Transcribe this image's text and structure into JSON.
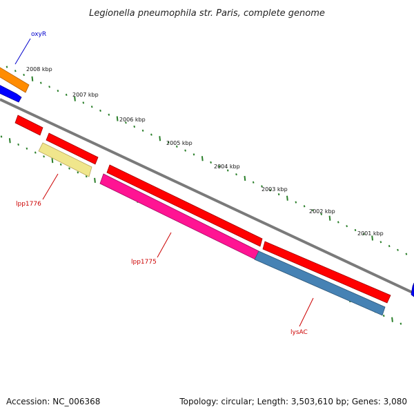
{
  "title": "Legionella pneumophila str. Paris, complete genome",
  "footer": {
    "accession": "Accession: NC_006368",
    "summary": "Topology: circular; Length: 3,503,610 bp; Genes: 3,080"
  },
  "scale_labels": [
    "2008 kbp",
    "2007 kbp",
    "2006 kbp",
    "2005 kbp",
    "2004 kbp",
    "2003 kbp",
    "2002 kbp",
    "2001 kbp"
  ],
  "gene_labels": {
    "oxyR": "oxyR",
    "lpp1776": "lpp1776",
    "lpp1775": "lpp1775",
    "lysAC": "lysAC"
  },
  "colors": {
    "backbone": "#7a7a7a",
    "tick": "#2a7f2a",
    "red_gene": "#ff0000",
    "orange_gene": "#ff8c00",
    "blue_gene": "#0000ff",
    "pale_gene": "#f0e68c",
    "pink_gene": "#ff1493",
    "steel_gene": "#4682b4",
    "label_red": "#cc0000",
    "label_blue": "#0000cc"
  }
}
